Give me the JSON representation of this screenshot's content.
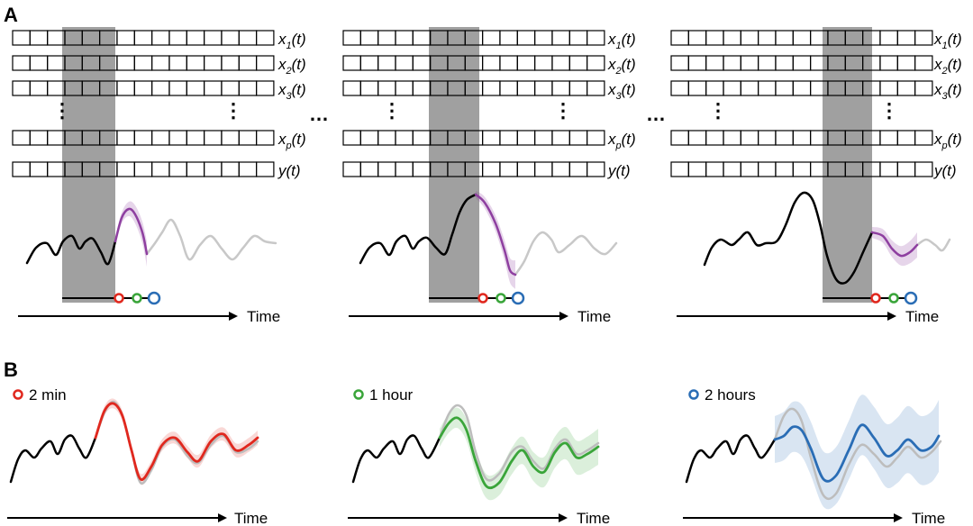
{
  "panel_a": {
    "label": "A",
    "time_label": "Time",
    "ellipsis": "…",
    "vdots": "⋮",
    "rows": [
      {
        "base": "x",
        "sub": "1",
        "suffix": "(t)"
      },
      {
        "base": "x",
        "sub": "2",
        "suffix": "(t)"
      },
      {
        "base": "x",
        "sub": "3",
        "suffix": "(t)"
      },
      {
        "base": "x",
        "sub": "p",
        "suffix": "(t)"
      },
      {
        "base": "y",
        "sub": "",
        "suffix": "(t)"
      }
    ]
  },
  "panel_b": {
    "label": "B",
    "time_label": "Time",
    "horizons": [
      {
        "label": "2 min",
        "color": "#e0281e"
      },
      {
        "label": "1 hour",
        "color": "#3aa53a"
      },
      {
        "label": "2 hours",
        "color": "#2a6db5"
      }
    ]
  },
  "colors": {
    "window": "#a0a0a0",
    "forecast": "#8e3fa0",
    "past": "#000000",
    "future": "#c8c8c8"
  }
}
